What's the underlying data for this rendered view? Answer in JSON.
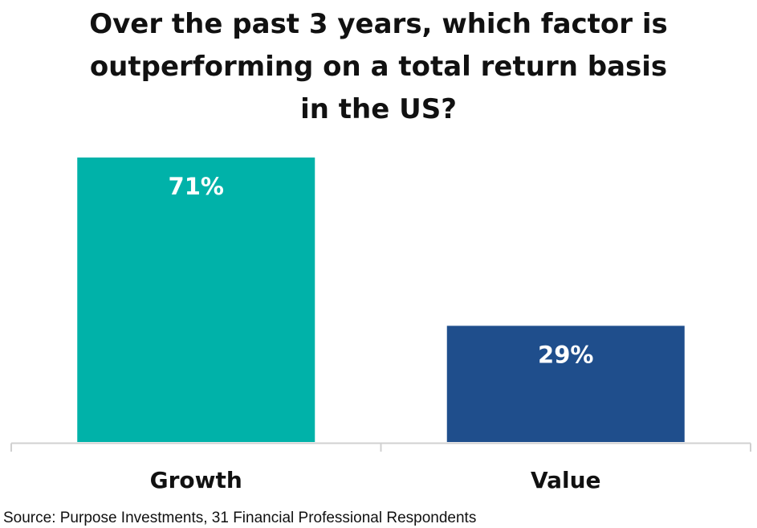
{
  "chart_data": {
    "type": "bar",
    "title_lines": [
      "Over the past 3 years, which factor is",
      "outperforming on a total return basis",
      "in the US?"
    ],
    "categories": [
      "Growth",
      "Value"
    ],
    "values": [
      71,
      29
    ],
    "value_labels": [
      "71%",
      "29%"
    ],
    "unit": "%",
    "ylim": [
      0,
      71
    ],
    "colors": [
      "#00B2A9",
      "#1F4E8C"
    ],
    "axis_color": "#D0D0D0",
    "grid": false,
    "legend": "none"
  },
  "source": "Source: Purpose Investments, 31 Financial Professional Respondents"
}
